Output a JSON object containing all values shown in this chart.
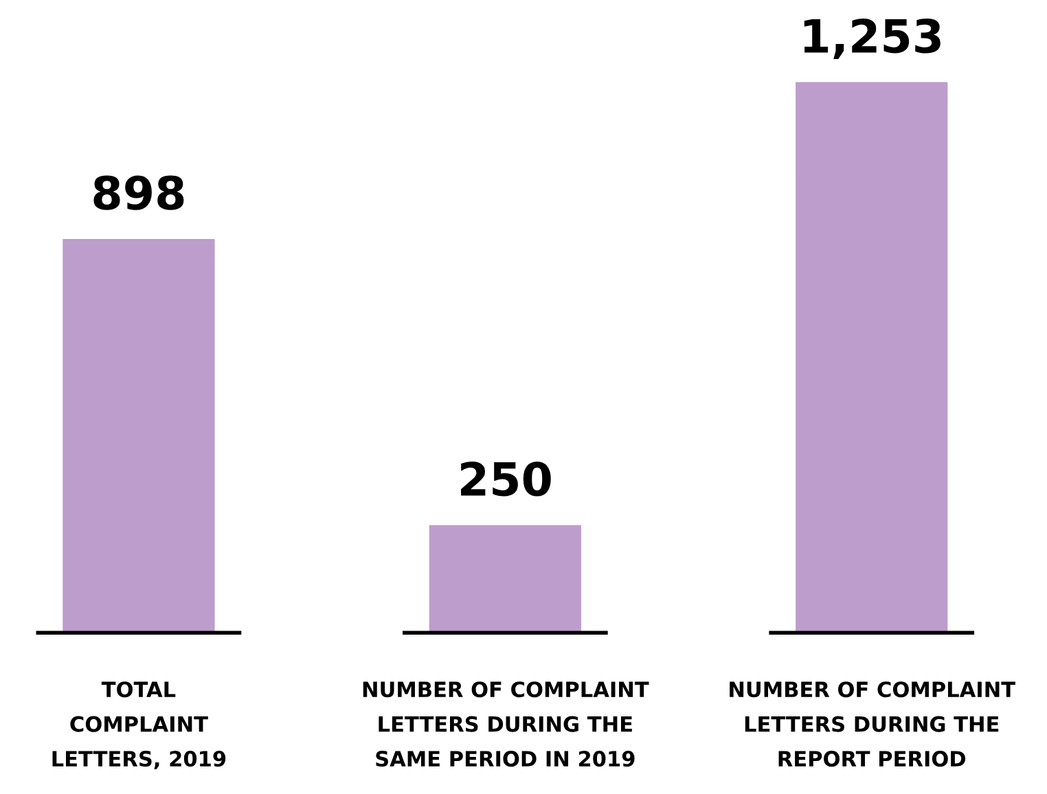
{
  "chart_data": {
    "type": "bar",
    "categories": [
      "TOTAL\nCOMPLAINT\nLETTERS, 2019",
      "NUMBER OF COMPLAINT\nLETTERS DURING THE\nSAME PERIOD IN 2019",
      "NUMBER OF COMPLAINT\nLETTERS DURING THE\nREPORT PERIOD"
    ],
    "values": [
      898,
      250,
      1253
    ],
    "value_labels": [
      "898",
      "250",
      "1,253"
    ],
    "color": "#bd9dcb",
    "ref_lines": [
      {
        "axis": "y",
        "value": 0,
        "color": "#000000"
      }
    ]
  }
}
